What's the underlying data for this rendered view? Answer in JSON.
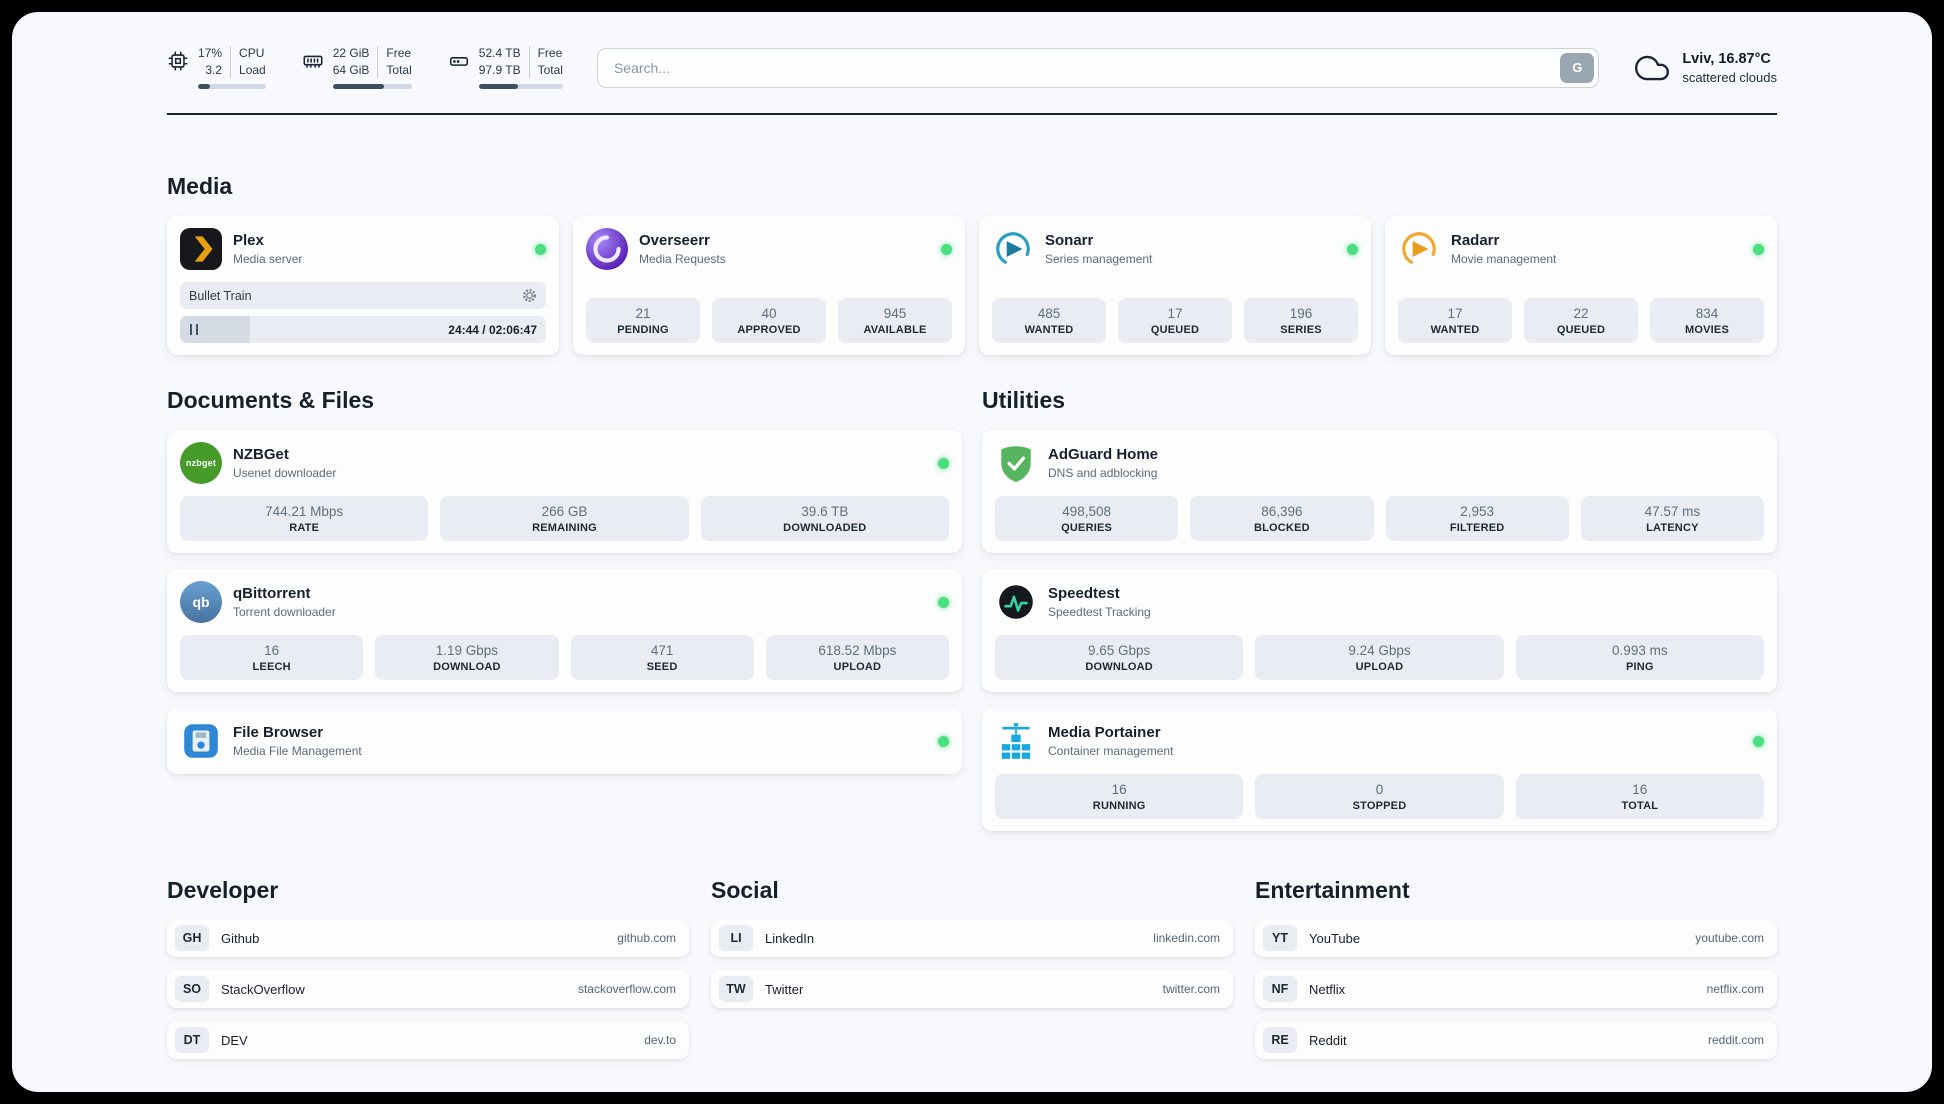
{
  "topbar": {
    "cpu": {
      "value1": "17%",
      "value2": "3.2",
      "label1": "CPU",
      "label2": "Load",
      "used_percent": 17
    },
    "memory": {
      "value1": "22 GiB",
      "value2": "64 GiB",
      "label1": "Free",
      "label2": "Total",
      "used_percent": 65
    },
    "disk": {
      "value1": "52.4 TB",
      "value2": "97.9 TB",
      "label1": "Free",
      "label2": "Total",
      "used_percent": 47
    },
    "search": {
      "placeholder": "Search...",
      "engine_button": "G"
    },
    "weather": {
      "location": "Lviv, 16.87°C",
      "condition": "scattered clouds"
    }
  },
  "sections": {
    "media": "Media",
    "documents": "Documents & Files",
    "utilities": "Utilities",
    "developer": "Developer",
    "social": "Social",
    "entertainment": "Entertainment"
  },
  "apps": {
    "plex": {
      "name": "Plex",
      "subtitle": "Media server",
      "now_playing": "Bullet Train",
      "time": "24:44 / 02:06:47",
      "progress_percent": 19
    },
    "overseerr": {
      "name": "Overseerr",
      "subtitle": "Media Requests",
      "stats": [
        {
          "value": "21",
          "label": "PENDING"
        },
        {
          "value": "40",
          "label": "APPROVED"
        },
        {
          "value": "945",
          "label": "AVAILABLE"
        }
      ]
    },
    "sonarr": {
      "name": "Sonarr",
      "subtitle": "Series management",
      "stats": [
        {
          "value": "485",
          "label": "WANTED"
        },
        {
          "value": "17",
          "label": "QUEUED"
        },
        {
          "value": "196",
          "label": "SERIES"
        }
      ]
    },
    "radarr": {
      "name": "Radarr",
      "subtitle": "Movie management",
      "stats": [
        {
          "value": "17",
          "label": "WANTED"
        },
        {
          "value": "22",
          "label": "QUEUED"
        },
        {
          "value": "834",
          "label": "MOVIES"
        }
      ]
    },
    "nzbget": {
      "name": "NZBGet",
      "subtitle": "Usenet downloader",
      "icon_text": "nzbget",
      "stats": [
        {
          "value": "744.21 Mbps",
          "label": "RATE"
        },
        {
          "value": "266 GB",
          "label": "REMAINING"
        },
        {
          "value": "39.6 TB",
          "label": "DOWNLOADED"
        }
      ]
    },
    "qbittorrent": {
      "name": "qBittorrent",
      "subtitle": "Torrent downloader",
      "icon_text": "qb",
      "stats": [
        {
          "value": "16",
          "label": "LEECH"
        },
        {
          "value": "1.19 Gbps",
          "label": "DOWNLOAD"
        },
        {
          "value": "471",
          "label": "SEED"
        },
        {
          "value": "618.52 Mbps",
          "label": "UPLOAD"
        }
      ]
    },
    "filebrowser": {
      "name": "File Browser",
      "subtitle": "Media File Management"
    },
    "adguard": {
      "name": "AdGuard Home",
      "subtitle": "DNS and adblocking",
      "stats": [
        {
          "value": "498,508",
          "label": "QUERIES"
        },
        {
          "value": "86,396",
          "label": "BLOCKED"
        },
        {
          "value": "2,953",
          "label": "FILTERED"
        },
        {
          "value": "47.57 ms",
          "label": "LATENCY"
        }
      ]
    },
    "speedtest": {
      "name": "Speedtest",
      "subtitle": "Speedtest Tracking",
      "stats": [
        {
          "value": "9.65 Gbps",
          "label": "DOWNLOAD"
        },
        {
          "value": "9.24 Gbps",
          "label": "UPLOAD"
        },
        {
          "value": "0.993 ms",
          "label": "PING"
        }
      ]
    },
    "portainer": {
      "name": "Media Portainer",
      "subtitle": "Container management",
      "stats": [
        {
          "value": "16",
          "label": "RUNNING"
        },
        {
          "value": "0",
          "label": "STOPPED"
        },
        {
          "value": "16",
          "label": "TOTAL"
        }
      ]
    }
  },
  "bookmarks": {
    "developer": [
      {
        "abbr": "GH",
        "name": "Github",
        "url": "github.com"
      },
      {
        "abbr": "SO",
        "name": "StackOverflow",
        "url": "stackoverflow.com"
      },
      {
        "abbr": "DT",
        "name": "DEV",
        "url": "dev.to"
      }
    ],
    "social": [
      {
        "abbr": "LI",
        "name": "LinkedIn",
        "url": "linkedin.com"
      },
      {
        "abbr": "TW",
        "name": "Twitter",
        "url": "twitter.com"
      }
    ],
    "entertainment": [
      {
        "abbr": "YT",
        "name": "YouTube",
        "url": "youtube.com"
      },
      {
        "abbr": "NF",
        "name": "Netflix",
        "url": "netflix.com"
      },
      {
        "abbr": "RE",
        "name": "Reddit",
        "url": "reddit.com"
      }
    ]
  },
  "colors": {
    "status_online": "#4ade80",
    "plex_accent": "#e5a00d"
  }
}
